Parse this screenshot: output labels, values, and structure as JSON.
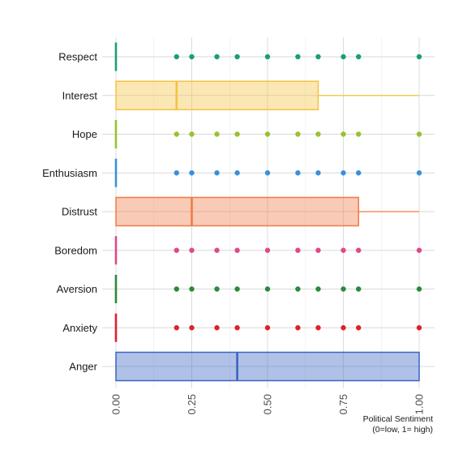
{
  "chart_data": {
    "type": "boxplot",
    "orientation": "horizontal",
    "xlabel_lines": [
      "Political Sentiment",
      "(0=low, 1= high)"
    ],
    "ylabel": "",
    "xlim": [
      0,
      1
    ],
    "x_ticks": [
      {
        "value": 0.0,
        "label": "0.00"
      },
      {
        "value": 0.25,
        "label": "0.25"
      },
      {
        "value": 0.5,
        "label": "0.50"
      },
      {
        "value": 0.75,
        "label": "0.75"
      },
      {
        "value": 1.0,
        "label": "1.00"
      }
    ],
    "grid": true,
    "legend": "none",
    "categories": [
      "Respect",
      "Interest",
      "Hope",
      "Enthusiasm",
      "Distrust",
      "Boredom",
      "Aversion",
      "Anxiety",
      "Anger"
    ],
    "series": [
      {
        "category": "Respect",
        "color": "#1b9e77",
        "q1": 0.0,
        "median": 0.0,
        "q3": 0.0,
        "whisker_low": 0.0,
        "whisker_high": 0.0,
        "outliers": [
          0.2,
          0.25,
          0.333,
          0.4,
          0.5,
          0.6,
          0.667,
          0.75,
          0.8,
          1.0
        ]
      },
      {
        "category": "Interest",
        "color": "#f5c242",
        "q1": 0.0,
        "median": 0.2,
        "q3": 0.667,
        "whisker_low": 0.0,
        "whisker_high": 1.0,
        "outliers": []
      },
      {
        "category": "Hope",
        "color": "#98c22f",
        "q1": 0.0,
        "median": 0.0,
        "q3": 0.0,
        "whisker_low": 0.0,
        "whisker_high": 0.0,
        "outliers": [
          0.2,
          0.25,
          0.333,
          0.4,
          0.5,
          0.6,
          0.667,
          0.75,
          0.8,
          1.0
        ]
      },
      {
        "category": "Enthusiasm",
        "color": "#3a8fde",
        "q1": 0.0,
        "median": 0.0,
        "q3": 0.0,
        "whisker_low": 0.0,
        "whisker_high": 0.0,
        "outliers": [
          0.2,
          0.25,
          0.333,
          0.4,
          0.5,
          0.6,
          0.667,
          0.75,
          0.8,
          1.0
        ]
      },
      {
        "category": "Distrust",
        "color": "#f07a45",
        "q1": 0.0,
        "median": 0.25,
        "q3": 0.8,
        "whisker_low": 0.0,
        "whisker_high": 1.0,
        "outliers": []
      },
      {
        "category": "Boredom",
        "color": "#e0488a",
        "q1": 0.0,
        "median": 0.0,
        "q3": 0.0,
        "whisker_low": 0.0,
        "whisker_high": 0.0,
        "outliers": [
          0.2,
          0.25,
          0.333,
          0.4,
          0.5,
          0.6,
          0.667,
          0.75,
          0.8,
          1.0
        ]
      },
      {
        "category": "Aversion",
        "color": "#2a8a3a",
        "q1": 0.0,
        "median": 0.0,
        "q3": 0.0,
        "whisker_low": 0.0,
        "whisker_high": 0.0,
        "outliers": [
          0.2,
          0.25,
          0.333,
          0.4,
          0.5,
          0.6,
          0.667,
          0.75,
          0.8,
          1.0
        ]
      },
      {
        "category": "Anxiety",
        "color": "#e0202a",
        "q1": 0.0,
        "median": 0.0,
        "q3": 0.0,
        "whisker_low": 0.0,
        "whisker_high": 0.0,
        "outliers": [
          0.2,
          0.25,
          0.333,
          0.4,
          0.5,
          0.6,
          0.667,
          0.75,
          0.8,
          1.0
        ]
      },
      {
        "category": "Anger",
        "color": "#3a63c4",
        "q1": 0.0,
        "median": 0.4,
        "q3": 1.0,
        "whisker_low": 0.0,
        "whisker_high": 1.0,
        "outliers": []
      }
    ]
  }
}
